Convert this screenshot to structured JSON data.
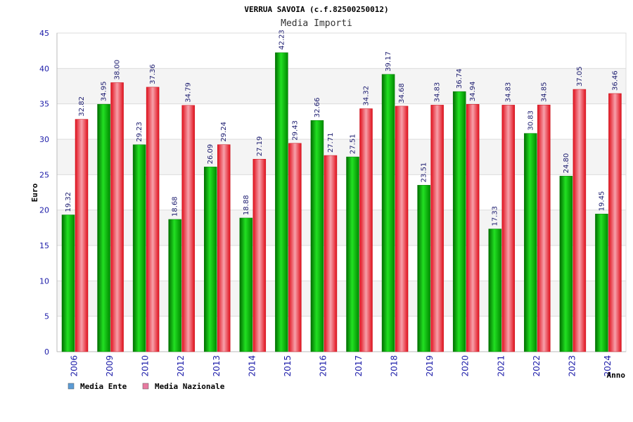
{
  "chart_data": {
    "type": "bar",
    "title": "VERRUA SAVOIA (c.f.82500250012)",
    "subtitle": "Media Importi",
    "ylabel": "Euro",
    "xlabel": "Anno",
    "ylim": [
      0,
      45
    ],
    "yticks": [
      0,
      5,
      10,
      15,
      20,
      25,
      30,
      35,
      40,
      45
    ],
    "grid": true,
    "legend_position": "bottom-left",
    "categories": [
      "2006",
      "2009",
      "2010",
      "2012",
      "2013",
      "2014",
      "2015",
      "2016",
      "2017",
      "2018",
      "2019",
      "2020",
      "2021",
      "2022",
      "2023",
      "2024"
    ],
    "series": [
      {
        "name": "Media Ente",
        "color": "#00b000",
        "legend_color": "#5b9bd5",
        "values": [
          19.32,
          34.95,
          29.23,
          18.68,
          26.09,
          18.88,
          42.23,
          32.66,
          27.51,
          39.17,
          23.51,
          36.74,
          17.33,
          30.83,
          24.8,
          19.45
        ],
        "labels": [
          "19.32",
          "34.95",
          "29.23",
          "18.68",
          "26.09",
          "18.88",
          "42.23",
          "32.66",
          "27.51",
          "39.17",
          "23.51",
          "36.74",
          "17.33",
          "30.83",
          "24.80",
          "19.45"
        ]
      },
      {
        "name": "Media Nazionale",
        "color": "#e8202a",
        "legend_color": "#e87aa0",
        "values": [
          32.82,
          38.0,
          37.36,
          34.79,
          29.24,
          27.19,
          29.43,
          27.71,
          34.32,
          34.68,
          34.83,
          34.94,
          34.83,
          34.85,
          37.05,
          36.46
        ],
        "labels": [
          "32.82",
          "38.00",
          "37.36",
          "34.79",
          "29.24",
          "27.19",
          "29.43",
          "27.71",
          "34.32",
          "34.68",
          "34.83",
          "34.94",
          "34.83",
          "34.85",
          "37.05",
          "36.46"
        ]
      }
    ]
  }
}
